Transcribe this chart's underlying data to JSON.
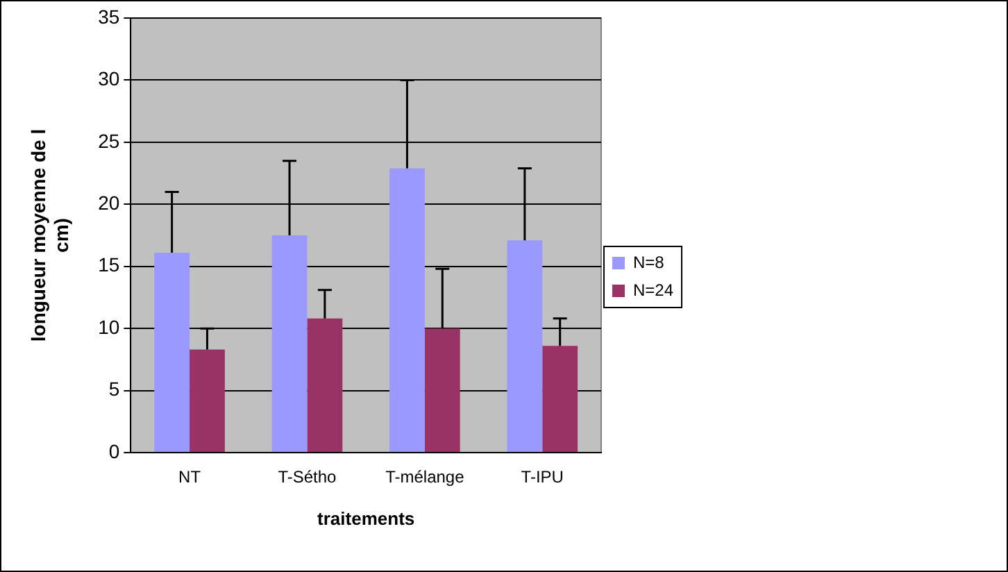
{
  "chart_data": {
    "type": "bar",
    "xlabel": "traitements",
    "ylabel": "longueur moyenne de l\ncm)",
    "categories": [
      "NT",
      "T-Sétho",
      "T-mélange",
      "T-IPU"
    ],
    "series": [
      {
        "name": "N=8",
        "color": "#9999ff",
        "values": [
          16.1,
          17.5,
          22.9,
          17.1
        ],
        "errors": [
          [
            16.1,
            21.0
          ],
          [
            17.5,
            23.5
          ],
          [
            22.9,
            30.0
          ],
          [
            17.1,
            22.9
          ]
        ]
      },
      {
        "name": "N=24",
        "color": "#993366",
        "values": [
          8.3,
          10.8,
          10.0,
          8.6
        ],
        "errors": [
          [
            8.3,
            10.0
          ],
          [
            10.8,
            13.1
          ],
          [
            10.0,
            14.8
          ],
          [
            8.6,
            10.8
          ]
        ]
      }
    ],
    "ylim": [
      0,
      35
    ],
    "yticks": [
      0,
      5,
      10,
      15,
      20,
      25,
      30,
      35
    ],
    "grid": "y",
    "legend": "right"
  }
}
